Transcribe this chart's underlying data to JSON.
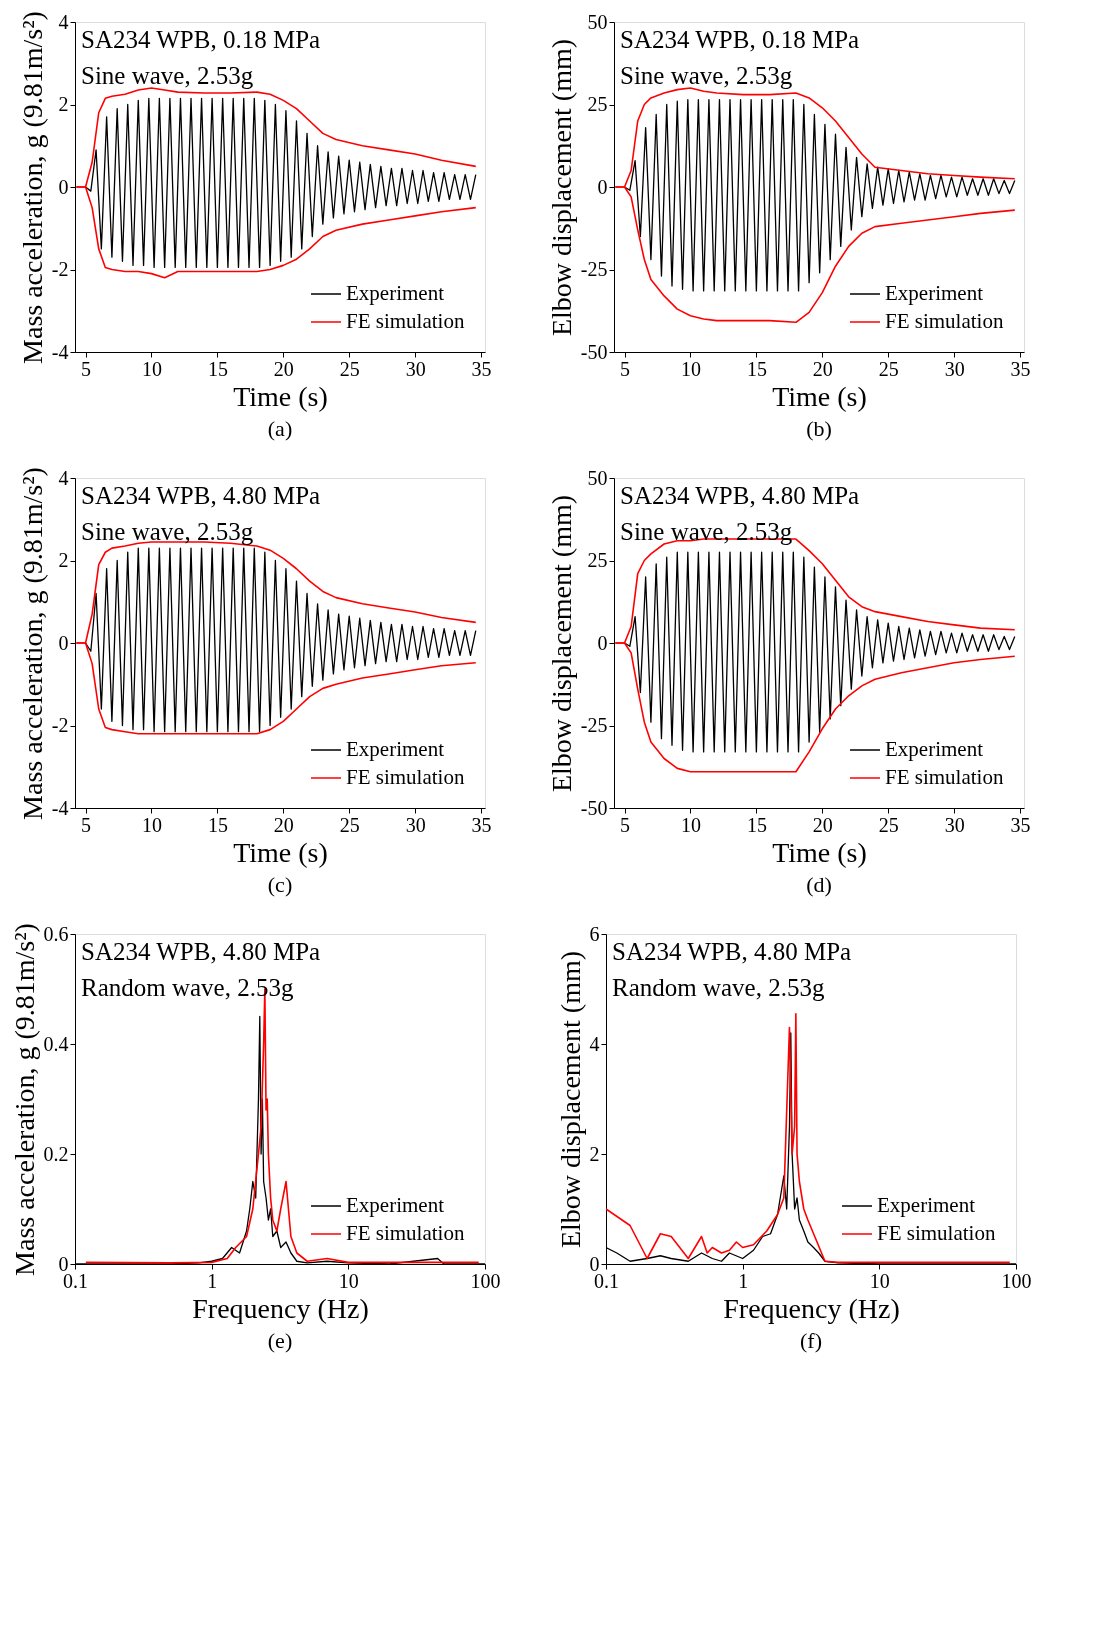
{
  "chart_data": [
    {
      "type": "line",
      "xlabel": "Time (s)",
      "ylabel": "Mass acceleration, g (9.81m/s²)",
      "annotations": [
        "SA234 WPB, 0.18 MPa",
        "Sine wave, 2.53g",
        "(a)"
      ],
      "xlim": [
        4.2,
        35.3
      ],
      "xticks": [
        5,
        10,
        15,
        20,
        25,
        30,
        35
      ],
      "ylim": [
        -4,
        4
      ],
      "yticks": [
        -4,
        -2,
        0,
        2,
        4
      ],
      "legend": "bottom right",
      "x": [
        5,
        5.4,
        5.8,
        6.2,
        6.6,
        7,
        7.4,
        7.8,
        8.2,
        8.6,
        9,
        9.4,
        9.8,
        10.2,
        10.6,
        11,
        11.4,
        11.8,
        12.2,
        12.6,
        13,
        13.4,
        13.8,
        14.2,
        14.6,
        15,
        15.4,
        15.8,
        16.2,
        16.6,
        17,
        17.4,
        17.8,
        18.2,
        18.6,
        19,
        19.4,
        19.8,
        20.2,
        20.6,
        21,
        21.4,
        21.8,
        22.2,
        22.6,
        23,
        23.4,
        23.8,
        24.2,
        24.6,
        25,
        25.4,
        25.8,
        26.2,
        26.6,
        27,
        27.4,
        27.8,
        28.2,
        28.6,
        29,
        29.4,
        29.8,
        30.2,
        30.6,
        31,
        31.4,
        31.8,
        32.2,
        32.6,
        33,
        33.4,
        33.8,
        34.2,
        34.6
      ],
      "series": [
        {
          "name": "Experiment",
          "color": "#000000",
          "values": [
            0,
            -0.1,
            0.9,
            -1.5,
            1.7,
            -1.7,
            1.9,
            -1.8,
            2.0,
            -1.9,
            2.1,
            -1.9,
            2.15,
            -1.95,
            2.15,
            -1.95,
            2.15,
            -1.95,
            2.15,
            -1.95,
            2.15,
            -1.95,
            2.15,
            -1.95,
            2.15,
            -1.95,
            2.15,
            -1.95,
            2.15,
            -1.95,
            2.15,
            -1.95,
            2.15,
            -1.95,
            2.1,
            -1.9,
            2.0,
            -1.8,
            1.85,
            -1.7,
            1.6,
            -1.5,
            1.3,
            -1.2,
            1.0,
            -0.9,
            0.85,
            -0.75,
            0.75,
            -0.65,
            0.65,
            -0.6,
            0.6,
            -0.55,
            0.55,
            -0.5,
            0.5,
            -0.45,
            0.45,
            -0.45,
            0.45,
            -0.4,
            0.4,
            -0.4,
            0.4,
            -0.35,
            0.35,
            -0.35,
            0.35,
            -0.3,
            0.3,
            -0.3,
            0.3,
            -0.3,
            0.3
          ]
        },
        {
          "name": "FE simulation",
          "color": "#ff0000",
          "x": [
            4.3,
            5,
            5.5,
            6,
            6.5,
            7,
            8,
            9,
            10,
            11,
            12,
            14,
            16,
            18,
            19,
            20,
            21,
            22,
            23,
            24,
            26,
            28,
            30,
            32,
            34.6
          ],
          "values": [
            0,
            0,
            0.6,
            1.8,
            2.15,
            2.2,
            2.25,
            2.35,
            2.4,
            2.35,
            2.3,
            2.28,
            2.28,
            2.3,
            2.25,
            2.1,
            1.9,
            1.6,
            1.3,
            1.15,
            1.0,
            0.9,
            0.8,
            0.65,
            0.5
          ]
        },
        {
          "color": "#ff0000",
          "x": [
            4.3,
            5,
            5.5,
            6,
            6.5,
            7,
            8,
            9,
            10,
            11,
            12,
            14,
            16,
            18,
            19,
            20,
            21,
            22,
            23,
            24,
            26,
            28,
            30,
            32,
            34.6
          ],
          "values": [
            0,
            0,
            -0.5,
            -1.5,
            -1.95,
            -2.0,
            -2.05,
            -2.05,
            -2.1,
            -2.2,
            -2.05,
            -2.05,
            -2.05,
            -2.05,
            -2.0,
            -1.9,
            -1.75,
            -1.5,
            -1.2,
            -1.05,
            -0.9,
            -0.8,
            -0.7,
            -0.6,
            -0.5
          ]
        }
      ]
    },
    {
      "type": "line",
      "xlabel": "Time (s)",
      "ylabel": "Elbow displacement (mm)",
      "annotations": [
        "SA234 WPB, 0.18 MPa",
        "Sine wave, 2.53g",
        "(b)"
      ],
      "xlim": [
        4.2,
        35.3
      ],
      "xticks": [
        5,
        10,
        15,
        20,
        25,
        30,
        35
      ],
      "ylim": [
        -50,
        50
      ],
      "yticks": [
        -50,
        -25,
        0,
        25,
        50
      ],
      "legend": "bottom right",
      "x": [
        5,
        5.4,
        5.8,
        6.2,
        6.6,
        7,
        7.4,
        7.8,
        8.2,
        8.6,
        9,
        9.4,
        9.8,
        10.2,
        10.6,
        11,
        11.4,
        11.8,
        12.2,
        12.6,
        13,
        13.4,
        13.8,
        14.2,
        14.6,
        15,
        15.4,
        15.8,
        16.2,
        16.6,
        17,
        17.4,
        17.8,
        18.2,
        18.6,
        19,
        19.4,
        19.8,
        20.2,
        20.6,
        21,
        21.4,
        21.8,
        22.2,
        22.6,
        23,
        23.4,
        23.8,
        24.2,
        24.6,
        25,
        25.4,
        25.8,
        26.2,
        26.6,
        27,
        27.4,
        27.8,
        28.2,
        28.6,
        29,
        29.4,
        29.8,
        30.2,
        30.6,
        31,
        31.4,
        31.8,
        32.2,
        32.6,
        33,
        33.4,
        33.8,
        34.2,
        34.6
      ],
      "series": [
        {
          "name": "Experiment",
          "color": "#000000",
          "values": [
            0,
            -1,
            8,
            -15,
            18,
            -22,
            22,
            -27,
            25,
            -30,
            26,
            -31,
            26.5,
            -31.5,
            26.5,
            -31.5,
            26.5,
            -31.5,
            26.5,
            -31.5,
            26.5,
            -31.5,
            26.5,
            -31.5,
            26.5,
            -31.5,
            26.5,
            -31.5,
            26.5,
            -31.5,
            26.5,
            -31.5,
            26.5,
            -31.5,
            25,
            -29,
            22,
            -26,
            19,
            -22,
            16,
            -18,
            12,
            -13,
            9,
            -9,
            7,
            -6.5,
            6,
            -5.5,
            5.5,
            -5,
            5,
            -4.5,
            4.5,
            -4,
            4,
            -4,
            3.5,
            -3.5,
            3.5,
            -3,
            3,
            -3,
            3,
            -2.5,
            2.5,
            -2.5,
            2.5,
            -2.5,
            2.5,
            -2,
            2,
            -2,
            2
          ]
        },
        {
          "name": "FE simulation",
          "color": "#ff0000",
          "x": [
            4.3,
            5,
            5.5,
            6,
            6.5,
            7,
            8,
            9,
            10,
            11,
            12,
            14,
            16,
            18,
            19,
            20,
            21,
            22,
            23,
            24,
            26,
            28,
            30,
            32,
            34.6
          ],
          "values": [
            0,
            0,
            5,
            20,
            25,
            27,
            28.5,
            29.5,
            30,
            29,
            28.5,
            28,
            28,
            28.5,
            27,
            24,
            20,
            15,
            10,
            6,
            5,
            4,
            3.5,
            3,
            2.5
          ]
        },
        {
          "color": "#ff0000",
          "x": [
            4.3,
            5,
            5.5,
            6,
            6.5,
            7,
            8,
            9,
            10,
            11,
            12,
            14,
            16,
            18,
            19,
            20,
            21,
            22,
            23,
            24,
            26,
            28,
            30,
            32,
            34.6
          ],
          "values": [
            0,
            0,
            -3,
            -13,
            -22,
            -28,
            -33,
            -37,
            -39,
            -40,
            -40.5,
            -40.5,
            -40.5,
            -41,
            -38,
            -32,
            -24,
            -18,
            -14,
            -12,
            -11,
            -10,
            -9,
            -8,
            -7
          ]
        }
      ]
    },
    {
      "type": "line",
      "xlabel": "Time (s)",
      "ylabel": "Mass acceleration, g (9.81m/s²)",
      "annotations": [
        "SA234 WPB, 4.80 MPa",
        "Sine wave, 2.53g",
        "(c)"
      ],
      "xlim": [
        4.2,
        35.3
      ],
      "xticks": [
        5,
        10,
        15,
        20,
        25,
        30,
        35
      ],
      "ylim": [
        -4,
        4
      ],
      "yticks": [
        -4,
        -2,
        0,
        2,
        4
      ],
      "legend": "bottom right",
      "x": [
        5,
        5.4,
        5.8,
        6.2,
        6.6,
        7,
        7.4,
        7.8,
        8.2,
        8.6,
        9,
        9.4,
        9.8,
        10.2,
        10.6,
        11,
        11.4,
        11.8,
        12.2,
        12.6,
        13,
        13.4,
        13.8,
        14.2,
        14.6,
        15,
        15.4,
        15.8,
        16.2,
        16.6,
        17,
        17.4,
        17.8,
        18.2,
        18.6,
        19,
        19.4,
        19.8,
        20.2,
        20.6,
        21,
        21.4,
        21.8,
        22.2,
        22.6,
        23,
        23.4,
        23.8,
        24.2,
        24.6,
        25,
        25.4,
        25.8,
        26.2,
        26.6,
        27,
        27.4,
        27.8,
        28.2,
        28.6,
        29,
        29.4,
        29.8,
        30.2,
        30.6,
        31,
        31.4,
        31.8,
        32.2,
        32.6,
        33,
        33.4,
        33.8,
        34.2,
        34.6
      ],
      "series": [
        {
          "name": "Experiment",
          "color": "#000000",
          "values": [
            0,
            -0.2,
            1.2,
            -1.6,
            1.8,
            -1.9,
            2.0,
            -2.0,
            2.2,
            -2.1,
            2.3,
            -2.1,
            2.3,
            -2.15,
            2.3,
            -2.15,
            2.3,
            -2.15,
            2.3,
            -2.15,
            2.3,
            -2.15,
            2.3,
            -2.15,
            2.3,
            -2.15,
            2.3,
            -2.15,
            2.3,
            -2.15,
            2.3,
            -2.15,
            2.3,
            -2.15,
            2.2,
            -2.0,
            2.0,
            -1.8,
            1.8,
            -1.6,
            1.5,
            -1.3,
            1.2,
            -1.05,
            0.95,
            -0.9,
            0.8,
            -0.75,
            0.7,
            -0.65,
            0.65,
            -0.6,
            0.6,
            -0.55,
            0.55,
            -0.5,
            0.5,
            -0.45,
            0.45,
            -0.45,
            0.45,
            -0.4,
            0.4,
            -0.4,
            0.4,
            -0.35,
            0.35,
            -0.35,
            0.35,
            -0.3,
            0.3,
            -0.3,
            0.3,
            -0.3,
            0.3
          ]
        },
        {
          "name": "FE simulation",
          "color": "#ff0000",
          "x": [
            4.3,
            5,
            5.5,
            6,
            6.5,
            7,
            8,
            9,
            10,
            11,
            12,
            14,
            16,
            18,
            19,
            20,
            21,
            22,
            23,
            24,
            26,
            28,
            30,
            32,
            34.6
          ],
          "values": [
            0,
            0,
            0.7,
            1.9,
            2.2,
            2.3,
            2.35,
            2.42,
            2.45,
            2.45,
            2.45,
            2.45,
            2.42,
            2.35,
            2.25,
            2.05,
            1.8,
            1.5,
            1.25,
            1.1,
            0.95,
            0.85,
            0.75,
            0.62,
            0.5
          ]
        },
        {
          "color": "#ff0000",
          "x": [
            4.3,
            5,
            5.5,
            6,
            6.5,
            7,
            8,
            9,
            10,
            11,
            12,
            14,
            16,
            18,
            19,
            20,
            21,
            22,
            23,
            24,
            26,
            28,
            30,
            32,
            34.6
          ],
          "values": [
            0,
            0,
            -0.5,
            -1.6,
            -2.05,
            -2.1,
            -2.15,
            -2.2,
            -2.2,
            -2.2,
            -2.2,
            -2.2,
            -2.2,
            -2.2,
            -2.1,
            -1.9,
            -1.6,
            -1.3,
            -1.1,
            -1.0,
            -0.85,
            -0.75,
            -0.65,
            -0.55,
            -0.48
          ]
        }
      ]
    },
    {
      "type": "line",
      "xlabel": "Time (s)",
      "ylabel": "Elbow displacement (mm)",
      "annotations": [
        "SA234 WPB, 4.80 MPa",
        "Sine wave, 2.53g",
        "(d)"
      ],
      "xlim": [
        4.2,
        35.3
      ],
      "xticks": [
        5,
        10,
        15,
        20,
        25,
        30,
        35
      ],
      "ylim": [
        -50,
        50
      ],
      "yticks": [
        -50,
        -25,
        0,
        25,
        50
      ],
      "legend": "bottom right",
      "x": [
        5,
        5.4,
        5.8,
        6.2,
        6.6,
        7,
        7.4,
        7.8,
        8.2,
        8.6,
        9,
        9.4,
        9.8,
        10.2,
        10.6,
        11,
        11.4,
        11.8,
        12.2,
        12.6,
        13,
        13.4,
        13.8,
        14.2,
        14.6,
        15,
        15.4,
        15.8,
        16.2,
        16.6,
        17,
        17.4,
        17.8,
        18.2,
        18.6,
        19,
        19.4,
        19.8,
        20.2,
        20.6,
        21,
        21.4,
        21.8,
        22.2,
        22.6,
        23,
        23.4,
        23.8,
        24.2,
        24.6,
        25,
        25.4,
        25.8,
        26.2,
        26.6,
        27,
        27.4,
        27.8,
        28.2,
        28.6,
        29,
        29.4,
        29.8,
        30.2,
        30.6,
        31,
        31.4,
        31.8,
        32.2,
        32.6,
        33,
        33.4,
        33.8,
        34.2,
        34.6
      ],
      "series": [
        {
          "name": "Experiment",
          "color": "#000000",
          "values": [
            0,
            -1,
            8,
            -15,
            20,
            -24,
            24,
            -29,
            26,
            -31,
            27.5,
            -32.5,
            27.5,
            -33,
            27.5,
            -33,
            27.5,
            -33,
            27.5,
            -33,
            27.5,
            -33,
            27.5,
            -33,
            27.5,
            -33,
            27.5,
            -33,
            27.5,
            -33,
            27.5,
            -33,
            27.5,
            -33,
            26,
            -30,
            23,
            -27,
            20,
            -23,
            17,
            -19,
            13,
            -14,
            10,
            -10,
            8,
            -7.5,
            7,
            -6,
            6,
            -5.5,
            5,
            -5,
            4.5,
            -4.5,
            4,
            -4,
            3.5,
            -3.5,
            3.5,
            -3,
            3,
            -3,
            3,
            -2.5,
            2.5,
            -2.5,
            2.5,
            -2.5,
            2.5,
            -2,
            2,
            -2,
            2
          ]
        },
        {
          "name": "FE simulation",
          "color": "#ff0000",
          "x": [
            4.3,
            5,
            5.5,
            6,
            6.5,
            7,
            8,
            9,
            10,
            11,
            12,
            14,
            16,
            18,
            19,
            20,
            21,
            22,
            23,
            24,
            26,
            28,
            30,
            32,
            34.6
          ],
          "values": [
            0,
            0,
            5,
            21,
            25,
            27,
            30,
            31,
            31,
            31.5,
            31.5,
            31.5,
            31.5,
            31.5,
            28,
            24,
            19,
            14,
            11,
            9.5,
            8,
            6.5,
            5.5,
            4.5,
            4
          ]
        },
        {
          "color": "#ff0000",
          "x": [
            4.3,
            5,
            5.5,
            6,
            6.5,
            7,
            8,
            9,
            10,
            11,
            12,
            14,
            16,
            18,
            19,
            20,
            21,
            22,
            23,
            24,
            26,
            28,
            30,
            32,
            34.6
          ],
          "values": [
            0,
            0,
            -3,
            -14,
            -24,
            -30,
            -35,
            -38,
            -39,
            -39,
            -39,
            -39,
            -39,
            -39,
            -33,
            -26,
            -20,
            -16,
            -13,
            -11,
            -9,
            -7.5,
            -6,
            -5,
            -4
          ]
        }
      ]
    },
    {
      "type": "line",
      "xlabel": "Frequency (Hz)",
      "ylabel": "Mass acceleration, g (9.81m/s²)",
      "annotations": [
        "SA234 WPB, 4.80 MPa",
        "Random wave, 2.53g",
        "(e)"
      ],
      "log": "x",
      "xlim": [
        0.1,
        100
      ],
      "xticks": [
        0.1,
        1,
        10,
        100
      ],
      "ylim": [
        0,
        0.6
      ],
      "yticks": [
        0,
        0.2,
        0.4,
        0.6
      ],
      "legend": "bottom right",
      "series": [
        {
          "name": "Experiment",
          "color": "#000000",
          "x": [
            0.1,
            0.3,
            0.5,
            0.8,
            1.0,
            1.2,
            1.4,
            1.6,
            1.8,
            1.9,
            2.0,
            2.1,
            2.2,
            2.25,
            2.3,
            2.35,
            2.4,
            2.5,
            2.6,
            2.7,
            2.8,
            3.0,
            3.2,
            3.5,
            3.8,
            4.2,
            5,
            7,
            10,
            20,
            45,
            50,
            100
          ],
          "values": [
            0,
            0,
            0,
            0.002,
            0.005,
            0.01,
            0.03,
            0.02,
            0.06,
            0.1,
            0.15,
            0.12,
            0.3,
            0.45,
            0.2,
            0.3,
            0.15,
            0.12,
            0.08,
            0.1,
            0.05,
            0.06,
            0.03,
            0.04,
            0.02,
            0.005,
            0.002,
            0.005,
            0.002,
            0,
            0.01,
            0,
            0
          ]
        },
        {
          "name": "FE simulation",
          "color": "#ff0000",
          "x": [
            0.12,
            0.5,
            1.0,
            1.3,
            1.5,
            1.8,
            2.0,
            2.2,
            2.3,
            2.4,
            2.45,
            2.5,
            2.55,
            2.6,
            2.7,
            2.8,
            3.0,
            3.2,
            3.5,
            3.8,
            4.2,
            5,
            7,
            10,
            30,
            90
          ],
          "values": [
            0.003,
            0.002,
            0.003,
            0.01,
            0.03,
            0.05,
            0.1,
            0.2,
            0.25,
            0.4,
            0.5,
            0.28,
            0.3,
            0.2,
            0.12,
            0.08,
            0.06,
            0.1,
            0.15,
            0.05,
            0.02,
            0.005,
            0.01,
            0.003,
            0.003,
            0.003
          ]
        }
      ]
    },
    {
      "type": "line",
      "xlabel": "Frequency (Hz)",
      "ylabel": "Elbow displacement (mm)",
      "annotations": [
        "SA234 WPB, 4.80 MPa",
        "Random wave, 2.53g",
        "(f)"
      ],
      "log": "x",
      "xlim": [
        0.1,
        100
      ],
      "xticks": [
        0.1,
        1,
        10,
        100
      ],
      "ylim": [
        0,
        6
      ],
      "yticks": [
        0,
        2,
        4,
        6
      ],
      "legend": "bottom right",
      "series": [
        {
          "name": "Experiment",
          "color": "#000000",
          "x": [
            0.1,
            0.12,
            0.15,
            0.2,
            0.25,
            0.3,
            0.4,
            0.5,
            0.6,
            0.7,
            0.8,
            1.0,
            1.2,
            1.4,
            1.6,
            1.8,
            2.0,
            2.1,
            2.2,
            2.25,
            2.3,
            2.35,
            2.4,
            2.5,
            2.6,
            2.8,
            3.0,
            3.3,
            3.6,
            4.0,
            5,
            10,
            100
          ],
          "values": [
            0.3,
            0.2,
            0.05,
            0.1,
            0.15,
            0.1,
            0.05,
            0.2,
            0.1,
            0.05,
            0.2,
            0.1,
            0.25,
            0.5,
            0.55,
            0.9,
            1.6,
            1.0,
            2.5,
            4.2,
            2.0,
            1.5,
            1.0,
            1.2,
            0.8,
            0.6,
            0.4,
            0.3,
            0.2,
            0.05,
            0.02,
            0,
            0
          ]
        },
        {
          "name": "FE simulation",
          "color": "#ff0000",
          "x": [
            0.1,
            0.15,
            0.2,
            0.25,
            0.3,
            0.4,
            0.5,
            0.55,
            0.6,
            0.7,
            0.8,
            0.9,
            1.0,
            1.2,
            1.5,
            1.8,
            2.0,
            2.2,
            2.3,
            2.4,
            2.45,
            2.5,
            2.6,
            2.8,
            3.0,
            3.5,
            4.0,
            5,
            10,
            90
          ],
          "values": [
            1.0,
            0.7,
            0.1,
            0.55,
            0.5,
            0.1,
            0.5,
            0.2,
            0.3,
            0.2,
            0.25,
            0.4,
            0.3,
            0.35,
            0.6,
            0.9,
            1.2,
            4.3,
            2.0,
            2.5,
            4.55,
            2.0,
            1.5,
            1.0,
            0.8,
            0.4,
            0.05,
            0.03,
            0.03,
            0.03
          ]
        }
      ]
    }
  ]
}
